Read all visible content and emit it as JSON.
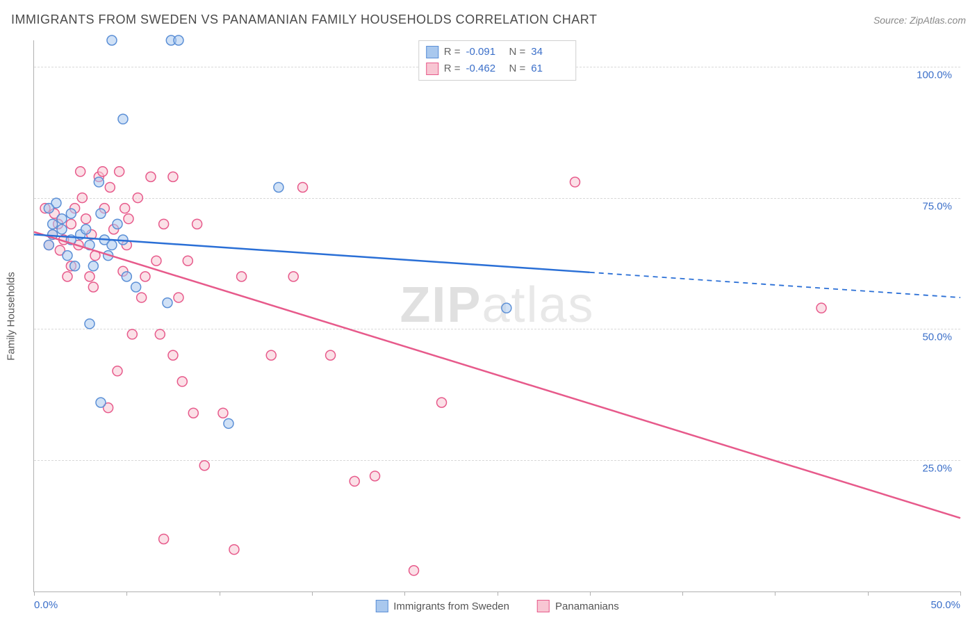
{
  "header": {
    "title": "IMMIGRANTS FROM SWEDEN VS PANAMANIAN FAMILY HOUSEHOLDS CORRELATION CHART",
    "source_prefix": "Source: ",
    "source_name": "ZipAtlas.com"
  },
  "watermark": {
    "zip": "ZIP",
    "atlas": "atlas"
  },
  "chart": {
    "type": "scatter",
    "y_axis_label": "Family Households",
    "xlim": [
      0,
      50
    ],
    "ylim": [
      0,
      105
    ],
    "x_ticks": [
      0,
      5,
      10,
      15,
      20,
      25,
      30,
      35,
      40,
      45,
      50
    ],
    "x_tick_labels_shown": {
      "0": "0.0%",
      "50": "50.0%"
    },
    "y_gridlines": [
      25,
      50,
      75,
      100
    ],
    "y_tick_labels": {
      "25": "25.0%",
      "50": "50.0%",
      "75": "75.0%",
      "100": "100.0%"
    },
    "background_color": "#ffffff",
    "grid_color": "#d8d8d8",
    "axis_color": "#b0b0b0",
    "label_color": "#3b6fc9",
    "title_fontsize": 18,
    "label_fontsize": 15
  },
  "legend_top": {
    "rows": [
      {
        "swatch_fill": "#a9c8ee",
        "swatch_stroke": "#5b8fd6",
        "r_label": "R =",
        "r_value": "-0.091",
        "n_label": "N =",
        "n_value": "34"
      },
      {
        "swatch_fill": "#f8c6d3",
        "swatch_stroke": "#e75a8b",
        "r_label": "R =",
        "r_value": "-0.462",
        "n_label": "N =",
        "n_value": "61"
      }
    ]
  },
  "legend_bottom": {
    "items": [
      {
        "swatch_fill": "#a9c8ee",
        "swatch_stroke": "#5b8fd6",
        "label": "Immigrants from Sweden"
      },
      {
        "swatch_fill": "#f8c6d3",
        "swatch_stroke": "#e75a8b",
        "label": "Panamanians"
      }
    ]
  },
  "series": {
    "sweden": {
      "marker_radius": 7,
      "fill": "#a9c8ee",
      "fill_opacity": 0.55,
      "stroke": "#5b8fd6",
      "stroke_width": 1.5,
      "points": [
        [
          4.2,
          105
        ],
        [
          7.4,
          105
        ],
        [
          7.8,
          105
        ],
        [
          4.8,
          90
        ],
        [
          1.2,
          74
        ],
        [
          0.8,
          73
        ],
        [
          1.0,
          70
        ],
        [
          1.5,
          69
        ],
        [
          3.5,
          78
        ],
        [
          2.0,
          67
        ],
        [
          3.0,
          66
        ],
        [
          4.5,
          70
        ],
        [
          2.2,
          62
        ],
        [
          3.2,
          62
        ],
        [
          1.8,
          64
        ],
        [
          2.5,
          68
        ],
        [
          3.8,
          67
        ],
        [
          4.0,
          64
        ],
        [
          5.0,
          60
        ],
        [
          5.5,
          58
        ],
        [
          13.2,
          77
        ],
        [
          3.0,
          51
        ],
        [
          7.2,
          55
        ],
        [
          3.6,
          36
        ],
        [
          10.5,
          32
        ],
        [
          25.5,
          54
        ],
        [
          1.0,
          68
        ],
        [
          2.0,
          72
        ],
        [
          0.8,
          66
        ],
        [
          1.5,
          71
        ],
        [
          4.2,
          66
        ],
        [
          2.8,
          69
        ],
        [
          3.6,
          72
        ],
        [
          4.8,
          67
        ]
      ],
      "trend": {
        "color": "#2a6fd6",
        "width": 2.5,
        "solid_end_x": 30,
        "y_at_x0": 68,
        "y_at_xmax": 56
      }
    },
    "panamanians": {
      "marker_radius": 7,
      "fill": "#f8c6d3",
      "fill_opacity": 0.55,
      "stroke": "#e75a8b",
      "stroke_width": 1.5,
      "points": [
        [
          0.6,
          73
        ],
        [
          1.1,
          72
        ],
        [
          1.3,
          70
        ],
        [
          1.0,
          68
        ],
        [
          0.8,
          66
        ],
        [
          1.6,
          67
        ],
        [
          1.4,
          65
        ],
        [
          2.0,
          70
        ],
        [
          2.2,
          73
        ],
        [
          2.4,
          66
        ],
        [
          2.6,
          75
        ],
        [
          2.8,
          71
        ],
        [
          3.1,
          68
        ],
        [
          3.3,
          64
        ],
        [
          3.5,
          79
        ],
        [
          3.8,
          73
        ],
        [
          4.1,
          77
        ],
        [
          4.3,
          69
        ],
        [
          4.6,
          80
        ],
        [
          5.1,
          71
        ],
        [
          5.6,
          75
        ],
        [
          6.0,
          60
        ],
        [
          6.3,
          79
        ],
        [
          6.6,
          63
        ],
        [
          7.0,
          70
        ],
        [
          7.5,
          79
        ],
        [
          8.3,
          63
        ],
        [
          8.8,
          70
        ],
        [
          7.8,
          56
        ],
        [
          6.8,
          49
        ],
        [
          5.3,
          49
        ],
        [
          7.5,
          45
        ],
        [
          8.0,
          40
        ],
        [
          8.6,
          34
        ],
        [
          10.2,
          34
        ],
        [
          4.5,
          42
        ],
        [
          4.0,
          35
        ],
        [
          3.2,
          58
        ],
        [
          11.2,
          60
        ],
        [
          12.8,
          45
        ],
        [
          14.5,
          77
        ],
        [
          14.0,
          60
        ],
        [
          16.0,
          45
        ],
        [
          17.3,
          21
        ],
        [
          18.4,
          22
        ],
        [
          22.0,
          36
        ],
        [
          20.5,
          4
        ],
        [
          9.2,
          24
        ],
        [
          10.8,
          8
        ],
        [
          7.0,
          10
        ],
        [
          3.0,
          60
        ],
        [
          2.0,
          62
        ],
        [
          1.8,
          60
        ],
        [
          4.8,
          61
        ],
        [
          5.0,
          66
        ],
        [
          5.8,
          56
        ],
        [
          29.2,
          78
        ],
        [
          42.5,
          54
        ],
        [
          2.5,
          80
        ],
        [
          3.7,
          80
        ],
        [
          4.9,
          73
        ]
      ],
      "trend": {
        "color": "#e75a8b",
        "width": 2.5,
        "y_at_x0": 68.5,
        "y_at_xmax": 14
      }
    }
  }
}
